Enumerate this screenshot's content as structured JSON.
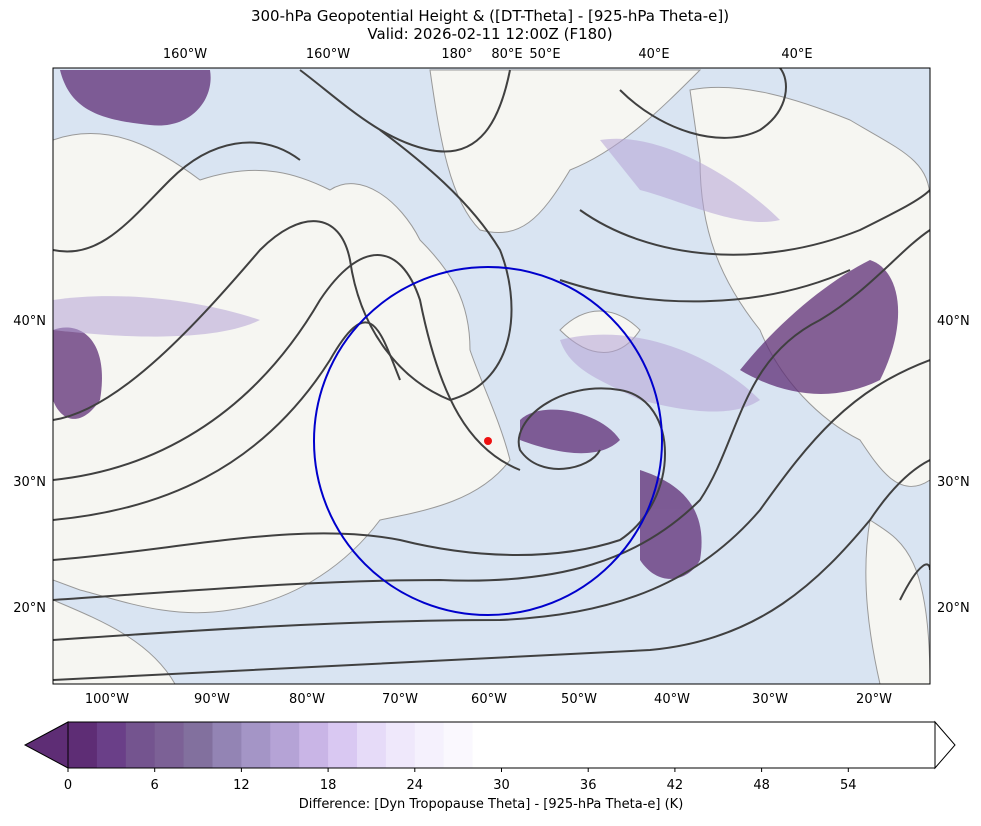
{
  "chart_data": {
    "type": "map",
    "title": "300-hPa Geopotential Height & ([DT-Theta] - [925-hPa Theta-e])",
    "subtitle": "Valid: 2026-02-11 12:00Z (F180)",
    "top_labels": [
      "160°W",
      "160°W",
      "180°",
      "80°E",
      "50°E",
      "40°E",
      "40°E"
    ],
    "left_labels": [
      "40°N",
      "30°N",
      "20°N"
    ],
    "right_labels": [
      "40°N",
      "30°N",
      "20°N"
    ],
    "bottom_labels": [
      "100°W",
      "90°W",
      "80°W",
      "70°W",
      "60°W",
      "50°W",
      "40°W",
      "30°W",
      "20°W"
    ],
    "colorbar": {
      "label": "Difference: [Dyn Tropopause Theta] - [925-hPa Theta-e] (K)",
      "lim": [
        0,
        60
      ],
      "ticks": [
        0,
        6,
        12,
        18,
        24,
        30,
        36,
        42,
        48,
        54
      ],
      "step": 2,
      "colors": [
        "#5e2d75",
        "#6a3f88",
        "#74548f",
        "#7c6196",
        "#82709e",
        "#9384b4",
        "#a495c6",
        "#b5a3d6",
        "#c9b5e6",
        "#d9c8f2",
        "#e6dbf8",
        "#efe8fb",
        "#f5f1fd",
        "#faf8fe"
      ],
      "above_color": "#ffffff"
    }
  }
}
